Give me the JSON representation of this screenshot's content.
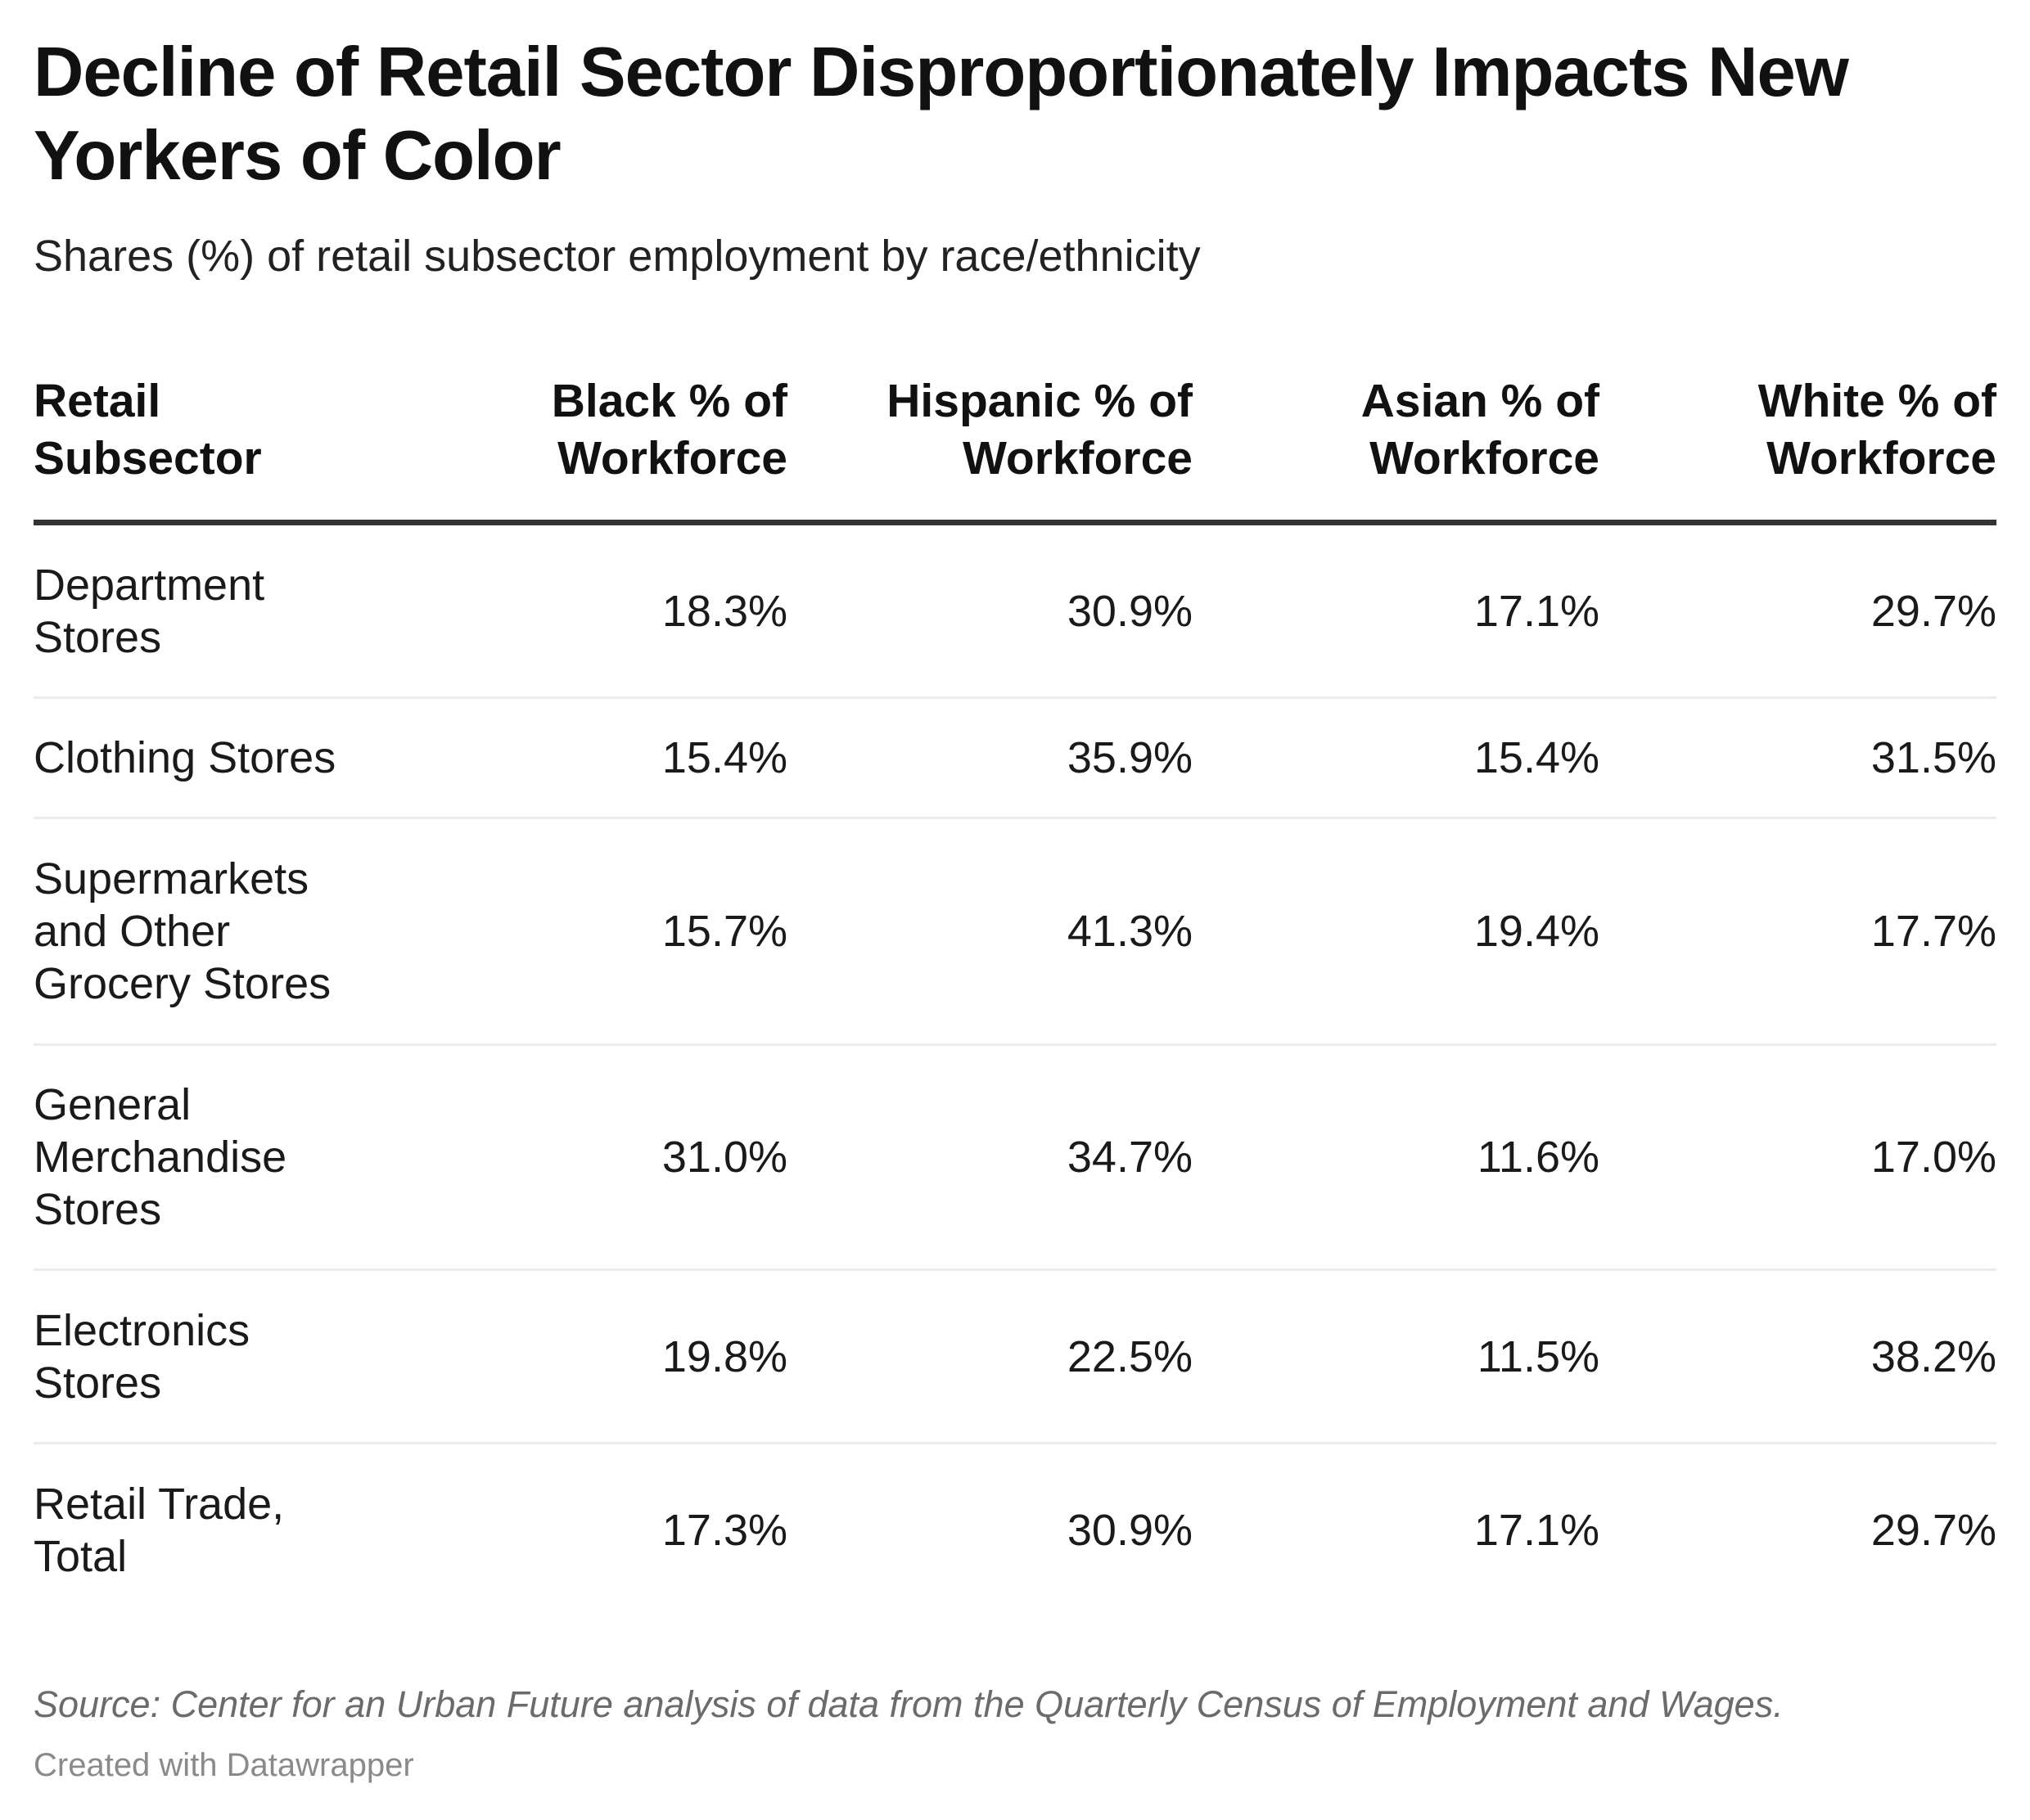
{
  "chart_data": {
    "type": "table",
    "title": "Decline of Retail Sector Disproportionately Impacts New Yorkers of Color",
    "subtitle": "Shares (%) of retail subsector employment by race/ethnicity",
    "columns": [
      "Retail Subsector",
      "Black % of Workforce",
      "Hispanic % of Workforce",
      "Asian % of Workforce",
      "White % of Workforce"
    ],
    "rows": [
      {
        "label": "Department Stores",
        "values": [
          "18.3%",
          "30.9%",
          "17.1%",
          "29.7%"
        ]
      },
      {
        "label": "Clothing Stores",
        "values": [
          "15.4%",
          "35.9%",
          "15.4%",
          "31.5%"
        ]
      },
      {
        "label": "Supermarkets and Other Grocery Stores",
        "values": [
          "15.7%",
          "41.3%",
          "19.4%",
          "17.7%"
        ]
      },
      {
        "label": "General Merchandise Stores",
        "values": [
          "31.0%",
          "34.7%",
          "11.6%",
          "17.0%"
        ]
      },
      {
        "label": "Electronics Stores",
        "values": [
          "19.8%",
          "22.5%",
          "11.5%",
          "38.2%"
        ]
      },
      {
        "label": "Retail Trade, Total",
        "values": [
          "17.3%",
          "30.9%",
          "17.1%",
          "29.7%"
        ]
      }
    ],
    "numeric_values": {
      "Black": [
        18.3,
        15.4,
        15.7,
        31.0,
        19.8,
        17.3
      ],
      "Hispanic": [
        30.9,
        35.9,
        41.3,
        34.7,
        22.5,
        30.9
      ],
      "Asian": [
        17.1,
        15.4,
        19.4,
        11.6,
        11.5,
        17.1
      ],
      "White": [
        29.7,
        31.5,
        17.7,
        17.0,
        38.2,
        29.7
      ]
    }
  },
  "footer": {
    "source": "Source: Center for an Urban Future analysis of data from the Quarterly Census of Employment and Wages.",
    "credit": "Created with Datawrapper"
  }
}
